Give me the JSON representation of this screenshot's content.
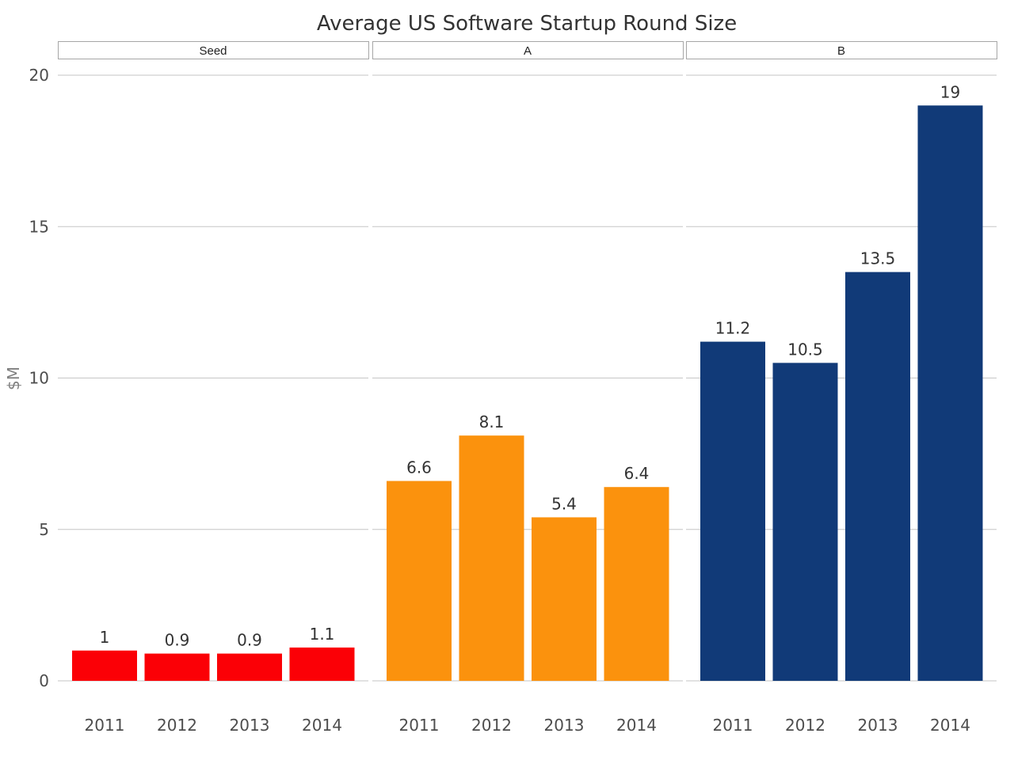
{
  "chart_data": {
    "type": "bar",
    "title": "Average US Software Startup Round Size",
    "ylabel": "$M",
    "xlabel": "",
    "ylim": [
      0,
      20
    ],
    "yticks": [
      "0",
      "5",
      "10",
      "15",
      "20"
    ],
    "grid": true,
    "legend": "none",
    "facets": [
      {
        "name": "Seed",
        "color": "#fb0006",
        "categories": [
          "2011",
          "2012",
          "2013",
          "2014"
        ],
        "values": [
          1,
          0.9,
          0.9,
          1.1
        ],
        "labels": [
          "1",
          "0.9",
          "0.9",
          "1.1"
        ]
      },
      {
        "name": "A",
        "color": "#fb920d",
        "categories": [
          "2011",
          "2012",
          "2013",
          "2014"
        ],
        "values": [
          6.6,
          8.1,
          5.4,
          6.4
        ],
        "labels": [
          "6.6",
          "8.1",
          "5.4",
          "6.4"
        ]
      },
      {
        "name": "B",
        "color": "#113a78",
        "categories": [
          "2011",
          "2012",
          "2013",
          "2014"
        ],
        "values": [
          11.2,
          10.5,
          13.5,
          19
        ],
        "labels": [
          "11.2",
          "10.5",
          "13.5",
          "19"
        ]
      }
    ]
  }
}
